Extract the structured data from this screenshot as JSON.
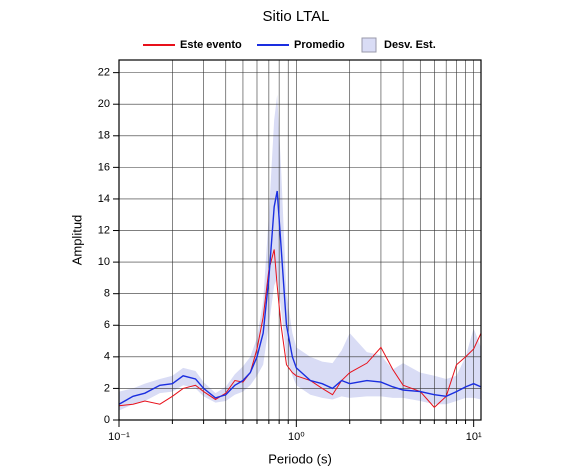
{
  "chart_data": {
    "type": "line",
    "title": "Sitio LTAL",
    "x_label": "Periodo (s)",
    "y_label": "Amplitud",
    "x_scale": "log",
    "grid": true,
    "xlim": [
      0.1,
      11
    ],
    "ylim": [
      0,
      22.8
    ],
    "xticks": [
      {
        "value": 0.1,
        "label": "10⁻¹"
      },
      {
        "value": 1,
        "label": "10⁰"
      },
      {
        "value": 10,
        "label": "10¹"
      }
    ],
    "xminorticks": [
      0.2,
      0.3,
      0.4,
      0.5,
      0.6,
      0.7,
      0.8,
      0.9,
      2,
      3,
      4,
      5,
      6,
      7,
      8,
      9
    ],
    "yticks": [
      0,
      2,
      4,
      6,
      8,
      10,
      12,
      14,
      16,
      18,
      20,
      22
    ],
    "x": [
      0.1,
      0.12,
      0.14,
      0.17,
      0.2,
      0.23,
      0.27,
      0.3,
      0.35,
      0.4,
      0.45,
      0.5,
      0.55,
      0.6,
      0.65,
      0.7,
      0.75,
      0.78,
      0.82,
      0.88,
      0.95,
      1.0,
      1.2,
      1.4,
      1.6,
      1.8,
      2.0,
      2.5,
      3,
      3.5,
      4,
      5,
      6,
      7,
      8,
      9,
      10,
      11
    ],
    "band": {
      "name": "Desv. Est.",
      "color": "#d9dcf5",
      "upper": [
        1.8,
        2.0,
        2.3,
        2.6,
        2.8,
        3.3,
        3.1,
        2.4,
        1.7,
        2.1,
        2.9,
        3.4,
        4.0,
        5.2,
        7.5,
        13,
        19,
        20.6,
        16,
        8,
        5.5,
        4.6,
        4.0,
        3.7,
        3.6,
        4.4,
        5.5,
        4.3,
        4.1,
        3.2,
        3.6,
        3.0,
        2.8,
        2.6,
        2.8,
        4.0,
        5.8,
        4.6
      ],
      "lower": [
        0.6,
        1.0,
        1.2,
        1.7,
        1.8,
        2.2,
        2.0,
        1.5,
        1.1,
        1.2,
        1.6,
        1.8,
        2.2,
        2.8,
        3.5,
        6,
        8.5,
        9,
        7,
        4,
        2.8,
        2.2,
        1.6,
        1.4,
        1.3,
        1.5,
        1.4,
        1.5,
        1.5,
        1.4,
        1.4,
        1.2,
        1.0,
        1.0,
        1.2,
        1.4,
        1.4,
        1.3
      ]
    },
    "series": [
      {
        "name": "Este evento",
        "color": "#e8101a",
        "values": [
          0.9,
          1.0,
          1.2,
          1.0,
          1.5,
          2.0,
          2.2,
          1.8,
          1.3,
          1.7,
          2.5,
          2.4,
          3.0,
          4.5,
          6.5,
          9.5,
          10.8,
          8.5,
          6,
          3.5,
          3.0,
          2.8,
          2.5,
          2.0,
          1.6,
          2.5,
          3.0,
          3.6,
          4.6,
          3.2,
          2.2,
          1.8,
          0.8,
          1.5,
          3.5,
          4.0,
          4.5,
          5.5
        ]
      },
      {
        "name": "Promedio",
        "color": "#1a2ee0",
        "values": [
          1.0,
          1.5,
          1.7,
          2.2,
          2.3,
          2.8,
          2.6,
          2.0,
          1.4,
          1.6,
          2.2,
          2.5,
          3.0,
          4.0,
          5.5,
          9,
          13.5,
          14.5,
          11,
          6,
          4,
          3.3,
          2.5,
          2.3,
          2.0,
          2.5,
          2.3,
          2.5,
          2.4,
          2.1,
          1.9,
          1.8,
          1.6,
          1.5,
          1.8,
          2.1,
          2.3,
          2.1
        ]
      }
    ]
  }
}
